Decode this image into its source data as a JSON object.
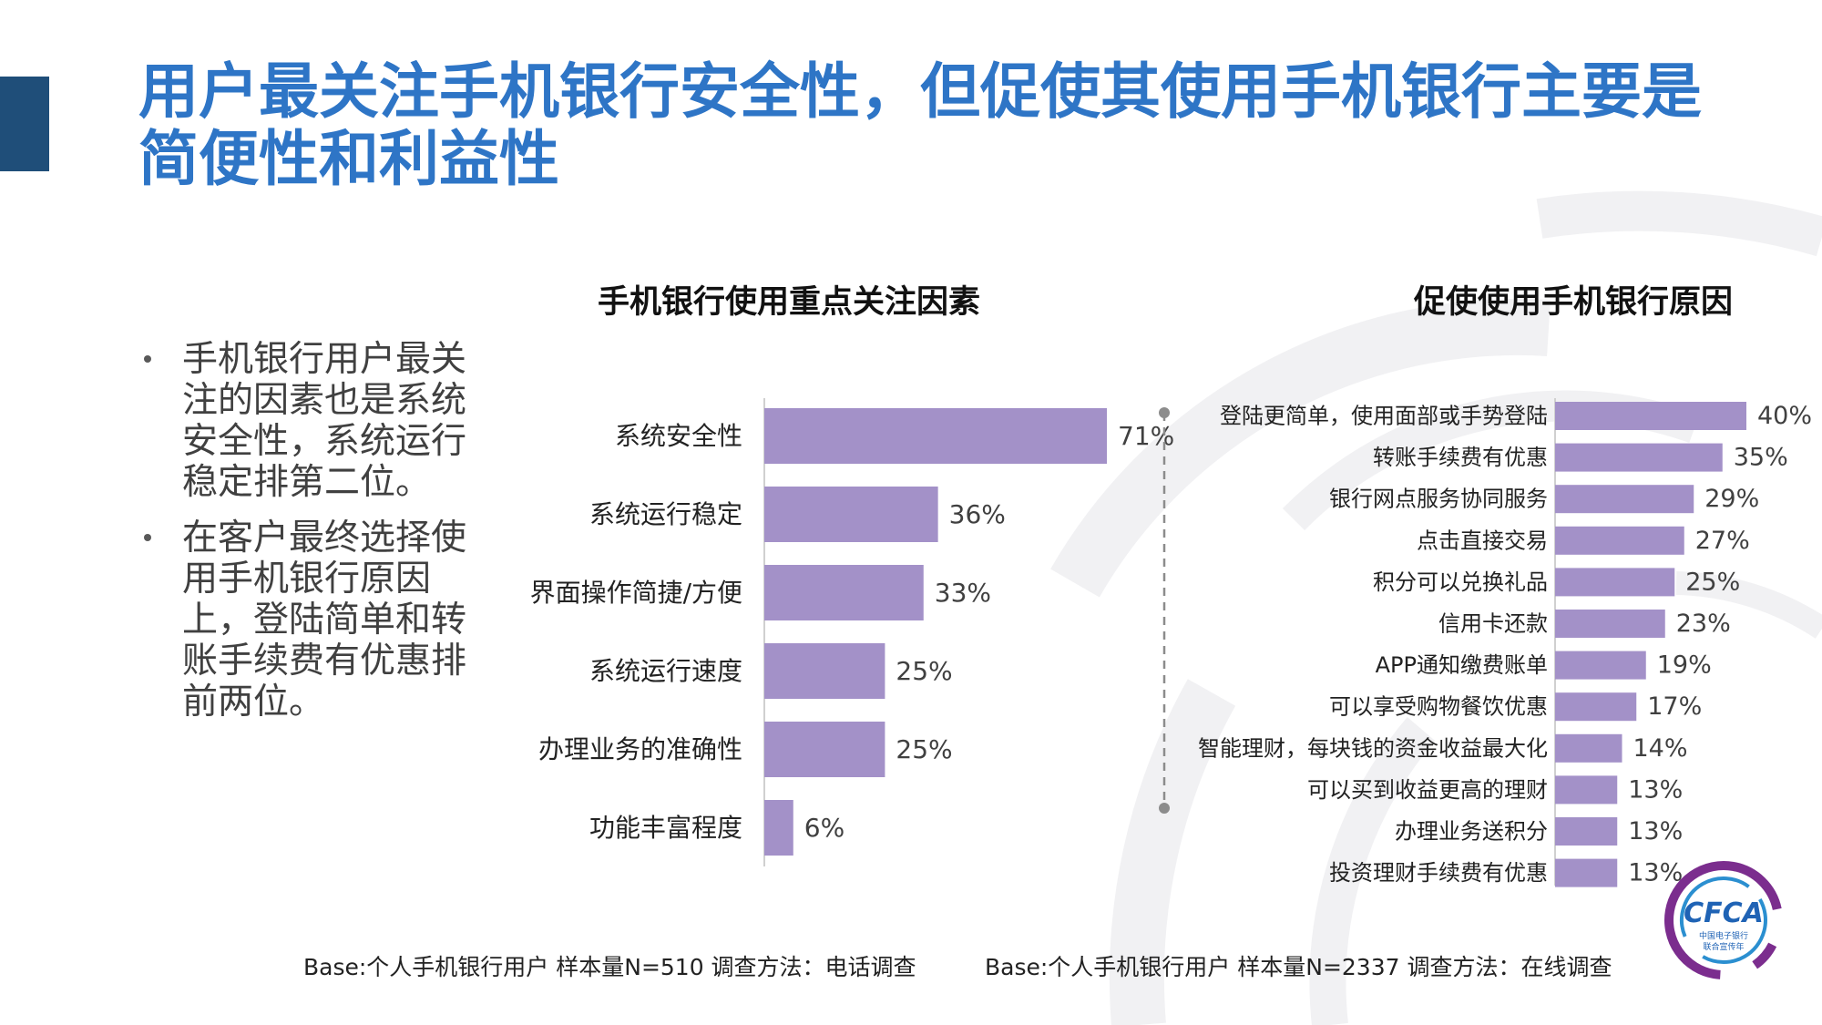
{
  "title": "用户最关注手机银行安全性，但促使其使用手机银行主要是简便性和利益性",
  "bullets": [
    "手机银行用户最关注的因素也是系统安全性，系统运行稳定排第二位。",
    "在客户最终选择使用手机银行原因上，登陆简单和转账手续费有优惠排前两位。"
  ],
  "footnotes": {
    "left": "Base:个人手机银行用户    样本量N=510    调查方法：电话调查",
    "right": "Base:个人手机银行用户    样本量N=2337    调查方法：在线调查"
  },
  "logo": {
    "text": "CFCA",
    "subtext_line1": "中国电子银行",
    "subtext_line2": "联合宣传年"
  },
  "colors": {
    "bar": "#a391c8",
    "title": "#2e75c6",
    "accent": "#1f4e79",
    "logo_ring": "#7b2d8e",
    "logo_text": "#1f63b5"
  },
  "chart_data": [
    {
      "type": "bar",
      "orientation": "horizontal",
      "title": "手机银行使用重点关注因素",
      "categories": [
        "系统安全性",
        "系统运行稳定",
        "界面操作简捷/方便",
        "系统运行速度",
        "办理业务的准确性",
        "功能丰富程度"
      ],
      "values": [
        71,
        36,
        33,
        25,
        25,
        6
      ],
      "value_labels": [
        "71%",
        "36%",
        "33%",
        "25%",
        "25%",
        "6%"
      ],
      "unit": "%",
      "xlim": [
        0,
        71
      ],
      "grid": false,
      "legend": "none"
    },
    {
      "type": "bar",
      "orientation": "horizontal",
      "title": "促使使用手机银行原因",
      "categories": [
        "登陆更简单，使用面部或手势登陆",
        "转账手续费有优惠",
        "银行网点服务协同服务",
        "点击直接交易",
        "积分可以兑换礼品",
        "信用卡还款",
        "APP通知缴费账单",
        "可以享受购物餐饮优惠",
        "智能理财，每块钱的资金收益最大化",
        "可以买到收益更高的理财",
        "办理业务送积分",
        "投资理财手续费有优惠"
      ],
      "values": [
        40,
        35,
        29,
        27,
        25,
        23,
        19,
        17,
        14,
        13,
        13,
        13
      ],
      "value_labels": [
        "40%",
        "35%",
        "29%",
        "27%",
        "25%",
        "23%",
        "19%",
        "17%",
        "14%",
        "13%",
        "13%",
        "13%"
      ],
      "unit": "%",
      "xlim": [
        0,
        40
      ],
      "grid": false,
      "legend": "none"
    }
  ]
}
